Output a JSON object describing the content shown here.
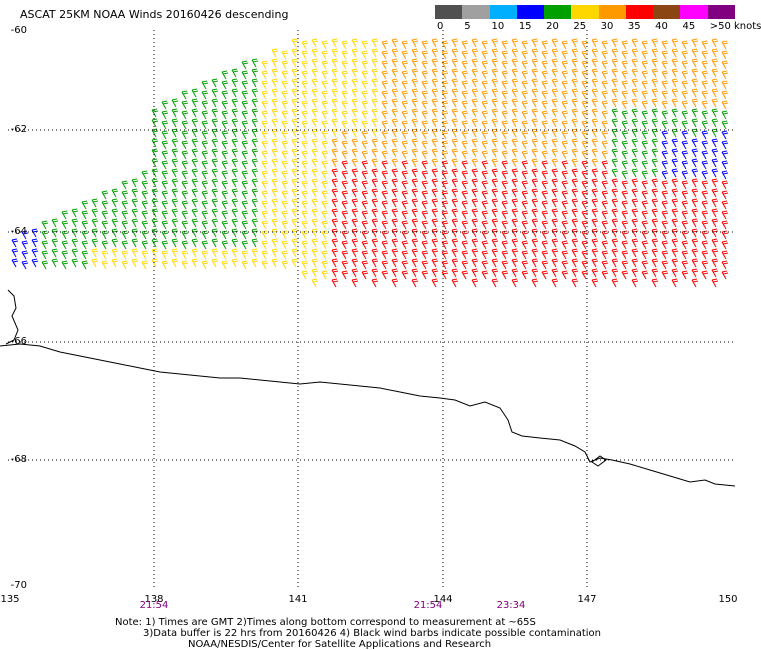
{
  "title": "ASCAT 25KM NOAA Winds 20160426 descending",
  "legend": {
    "labels": [
      "0",
      "5",
      "10",
      "15",
      "20",
      "25",
      "30",
      "35",
      "40",
      "45",
      ">50 knots"
    ],
    "colors": [
      "#505050",
      "#a0a0a0",
      "#00b0ff",
      "#0000ff",
      "#00a000",
      "#ffd700",
      "#ff9900",
      "#ff0000",
      "#8b4513",
      "#ff00ff",
      "#800080"
    ]
  },
  "lat_labels": [
    "-60",
    "-62",
    "-64",
    "-66",
    "-68",
    "-70"
  ],
  "lon_labels": [
    "135",
    "138",
    "141",
    "144",
    "147",
    "150"
  ],
  "time_labels": [
    "21:54",
    "21:54",
    "23:34"
  ],
  "notes": [
    "Note: 1) Times are GMT 2)Times along bottom correspond to measurement at ~65S",
    "3)Data buffer is 22 hrs from 20160426 4) Black wind barbs indicate possible contamination",
    "NOAA/NESDIS/Center for Satellite Applications and Research"
  ]
}
